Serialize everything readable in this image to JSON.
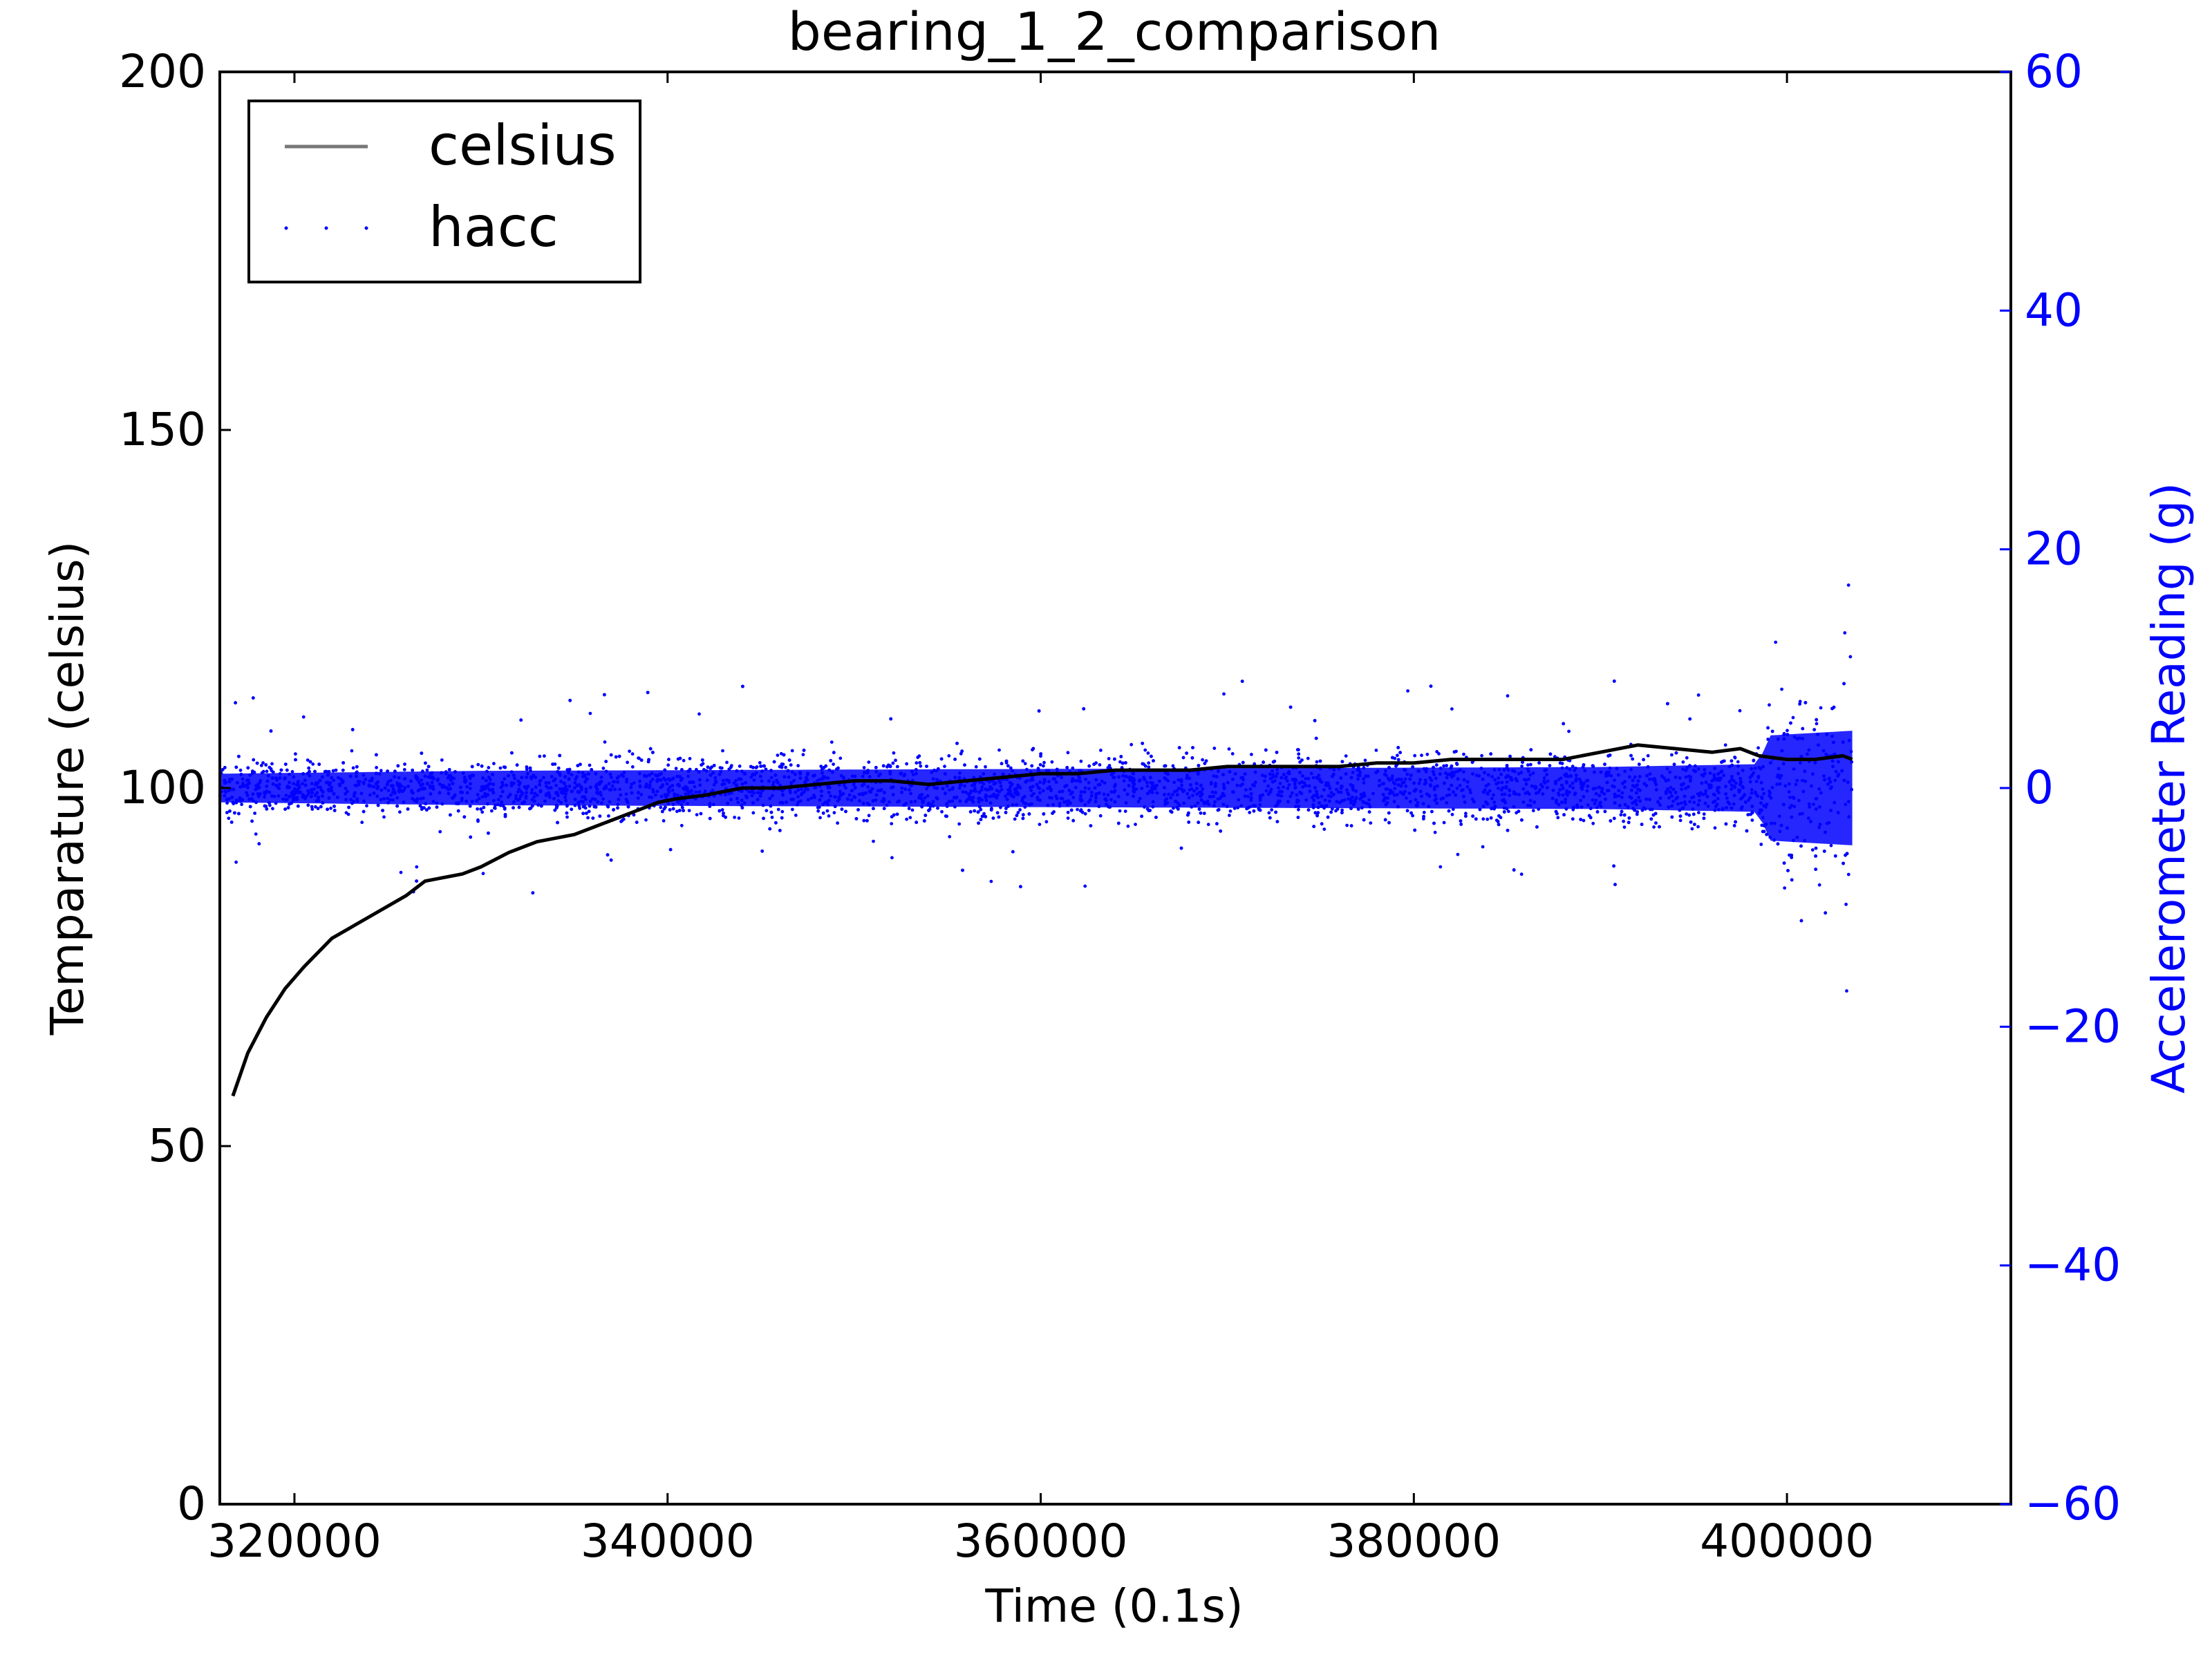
{
  "chart_data": {
    "type": "line",
    "title": "bearing_1_2_comparison",
    "xlabel": "Time (0.1s)",
    "ylabel_left": "Temparature (celsius)",
    "ylabel_right": "Accelerometer Reading (g)",
    "xlim": [
      316000,
      412000
    ],
    "ylim_left": [
      0,
      200
    ],
    "ylim_right": [
      -60,
      60
    ],
    "x_ticks": [
      320000,
      340000,
      360000,
      380000,
      400000
    ],
    "x_tick_labels": [
      "320000",
      "340000",
      "360000",
      "380000",
      "400000"
    ],
    "y_left_ticks": [
      0,
      50,
      100,
      150,
      200
    ],
    "y_left_tick_labels": [
      "0",
      "50",
      "100",
      "150",
      "200"
    ],
    "y_right_ticks": [
      -60,
      -40,
      -20,
      0,
      20,
      40,
      60
    ],
    "y_right_tick_labels": [
      "−60",
      "−40",
      "−20",
      "0",
      "20",
      "40",
      "60"
    ],
    "grid": false,
    "legend_position": "top-left",
    "colors": {
      "celsius": "#000000",
      "hacc": "#0000ff",
      "right_axis": "#0000ff"
    },
    "series": [
      {
        "name": "celsius",
        "axis": "left",
        "kind": "line",
        "x": [
          316700,
          317500,
          318500,
          319500,
          320500,
          322000,
          324000,
          326000,
          327000,
          329000,
          330000,
          331500,
          333000,
          335000,
          336500,
          338000,
          339500,
          340500,
          342000,
          344000,
          346000,
          348000,
          350000,
          352000,
          354000,
          356000,
          358000,
          360000,
          362000,
          364000,
          366000,
          368000,
          370000,
          372000,
          374000,
          376000,
          378000,
          380000,
          382000,
          384000,
          386000,
          388000,
          390000,
          392000,
          394000,
          396000,
          397500,
          398500,
          400000,
          401500,
          403000,
          403500
        ],
        "y": [
          57,
          63,
          68,
          72,
          75,
          79,
          82,
          85,
          87,
          88,
          89,
          91,
          92.5,
          93.5,
          95,
          96.5,
          98,
          98.5,
          99,
          100,
          100,
          100.5,
          101,
          101,
          100.5,
          101,
          101.5,
          102,
          102,
          102.5,
          102.5,
          102.5,
          103,
          103,
          103,
          103,
          103.5,
          103.5,
          104,
          104,
          104,
          104,
          105,
          106,
          105.5,
          105,
          105.5,
          104.5,
          104,
          104,
          104.5,
          104
        ]
      },
      {
        "name": "hacc",
        "axis": "right",
        "kind": "scatter",
        "x_range": [
          316000,
          403500
        ],
        "band_amplitude": [
          {
            "x": 316000,
            "amp": 1.5
          },
          {
            "x": 330000,
            "amp": 1.8
          },
          {
            "x": 360000,
            "amp": 2.0
          },
          {
            "x": 390000,
            "amp": 2.2
          },
          {
            "x": 398500,
            "amp": 2.5
          },
          {
            "x": 399000,
            "amp": 5.5
          },
          {
            "x": 403500,
            "amp": 6.0
          }
        ],
        "outlier_range": [
          -18,
          17
        ]
      }
    ]
  }
}
